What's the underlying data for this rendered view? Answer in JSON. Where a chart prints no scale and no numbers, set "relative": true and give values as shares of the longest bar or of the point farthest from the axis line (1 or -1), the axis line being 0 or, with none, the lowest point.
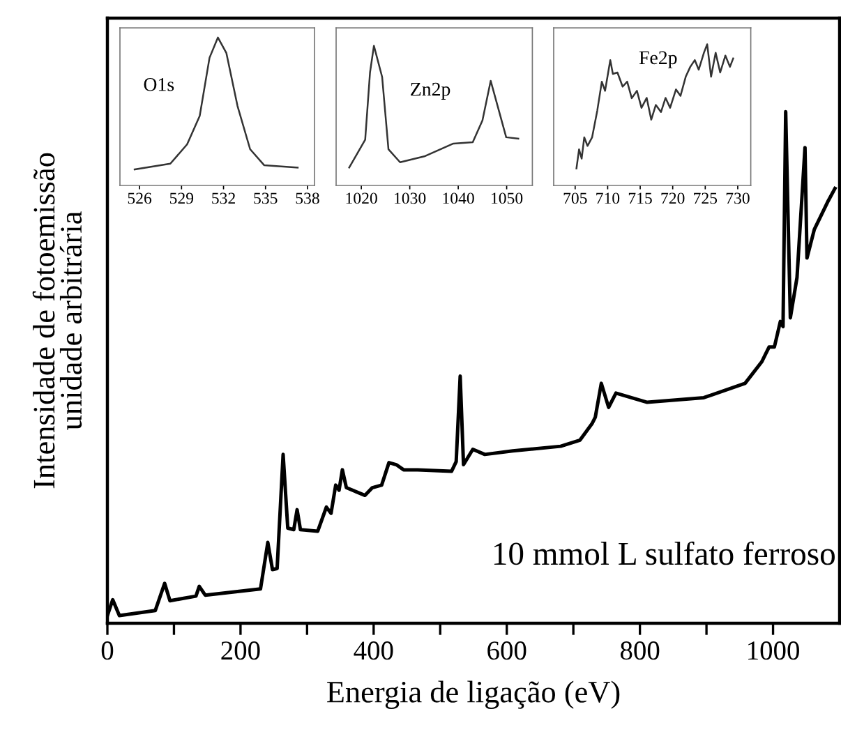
{
  "chart_data": [
    {
      "type": "line",
      "relative": true,
      "xlabel": "Energia de ligação (eV)",
      "ylabel": "Intensidade de fotoemissão\nunidade arbitrária",
      "annotations": [
        "10 mmol L sulfato ferroso"
      ],
      "xlim": [
        0,
        1100
      ],
      "xticks": [
        0,
        {
          "value": 100,
          "label": null
        },
        200,
        {
          "value": 300,
          "label": null
        },
        400,
        {
          "value": 500,
          "label": null
        },
        600,
        {
          "value": 700,
          "label": null
        },
        800,
        {
          "value": 900,
          "label": null
        },
        1000
      ],
      "tick_labels": "x",
      "series": [
        {
          "color": "#000000",
          "x": [
            0,
            8,
            18,
            72,
            86,
            94,
            133,
            138,
            147,
            230,
            241,
            248,
            255,
            264,
            271,
            280,
            285,
            290,
            316,
            329,
            336,
            343,
            348,
            353,
            359,
            387,
            398,
            412,
            423,
            434,
            445,
            466,
            517,
            524,
            530,
            535,
            549,
            567,
            609,
            681,
            710,
            728,
            733,
            742,
            753,
            764,
            811,
            896,
            958,
            983,
            994,
            1002,
            1011,
            1015,
            1019,
            1026,
            1036,
            1048,
            1051,
            1062,
            1083,
            1093
          ],
          "values": [
            0.015,
            0.046,
            0.015,
            0.025,
            0.078,
            0.044,
            0.053,
            0.072,
            0.055,
            0.067,
            0.158,
            0.105,
            0.107,
            0.33,
            0.186,
            0.183,
            0.222,
            0.183,
            0.18,
            0.227,
            0.215,
            0.27,
            0.26,
            0.3,
            0.265,
            0.25,
            0.265,
            0.27,
            0.314,
            0.31,
            0.3,
            0.3,
            0.297,
            0.316,
            0.483,
            0.31,
            0.34,
            0.33,
            0.337,
            0.346,
            0.358,
            0.39,
            0.403,
            0.469,
            0.422,
            0.45,
            0.432,
            0.441,
            0.469,
            0.511,
            0.54,
            0.54,
            0.59,
            0.58,
            1.0,
            0.597,
            0.676,
            0.93,
            0.714,
            0.77,
            0.826,
            0.85
          ]
        }
      ]
    },
    {
      "type": "line",
      "relative": true,
      "title": "O1s",
      "xlim": [
        524.6,
        538.5
      ],
      "xticks": [
        526,
        529,
        532,
        535,
        538
      ],
      "tick_labels": "x",
      "series": [
        {
          "color": "#333333",
          "x": [
            525.65,
            528.2,
            529.4,
            530.3,
            531.0,
            531.6,
            532.2,
            533.0,
            533.9,
            534.9,
            537.3
          ],
          "values": [
            0.108,
            0.147,
            0.278,
            0.47,
            0.863,
            1.0,
            0.896,
            0.537,
            0.245,
            0.137,
            0.121
          ]
        }
      ]
    },
    {
      "type": "line",
      "relative": true,
      "title": "Zn2p",
      "xlim": [
        1014.8,
        1055.3
      ],
      "xticks": [
        1020,
        1030,
        1040,
        1050
      ],
      "tick_labels": "x",
      "series": [
        {
          "color": "#333333",
          "x": [
            1017.5,
            1020.8,
            1021.8,
            1022.6,
            1024.3,
            1025.6,
            1028.0,
            1033.0,
            1039.0,
            1043.0,
            1045.0,
            1046.7,
            1048.4,
            1049.9,
            1052.4
          ],
          "values": [
            0.128,
            0.328,
            0.81,
            1.0,
            0.776,
            0.259,
            0.166,
            0.208,
            0.3,
            0.31,
            0.466,
            0.749,
            0.535,
            0.345,
            0.335
          ]
        }
      ]
    },
    {
      "type": "line",
      "relative": true,
      "title": "Fe2p",
      "xlim": [
        701.7,
        732.0
      ],
      "xticks": [
        705,
        710,
        715,
        720,
        725,
        730
      ],
      "tick_labels": "x",
      "series": [
        {
          "color": "#333333",
          "x": [
            705.2,
            705.6,
            706.0,
            706.4,
            706.9,
            707.6,
            708.4,
            709.1,
            709.6,
            710.4,
            710.8,
            711.5,
            712.3,
            713.0,
            713.7,
            714.5,
            715.2,
            716.0,
            716.7,
            717.4,
            718.2,
            718.9,
            719.6,
            720.5,
            721.2,
            722.0,
            722.7,
            723.4,
            724.0,
            724.8,
            725.3,
            725.9,
            726.6,
            727.3,
            728.1,
            728.8,
            729.3
          ],
          "values": [
            0.12,
            0.256,
            0.19,
            0.341,
            0.28,
            0.34,
            0.53,
            0.735,
            0.67,
            0.888,
            0.79,
            0.8,
            0.7,
            0.735,
            0.618,
            0.67,
            0.55,
            0.62,
            0.466,
            0.57,
            0.52,
            0.62,
            0.55,
            0.68,
            0.635,
            0.77,
            0.84,
            0.888,
            0.82,
            0.94,
            1.0,
            0.77,
            0.94,
            0.8,
            0.92,
            0.84,
            0.9
          ]
        }
      ]
    }
  ]
}
